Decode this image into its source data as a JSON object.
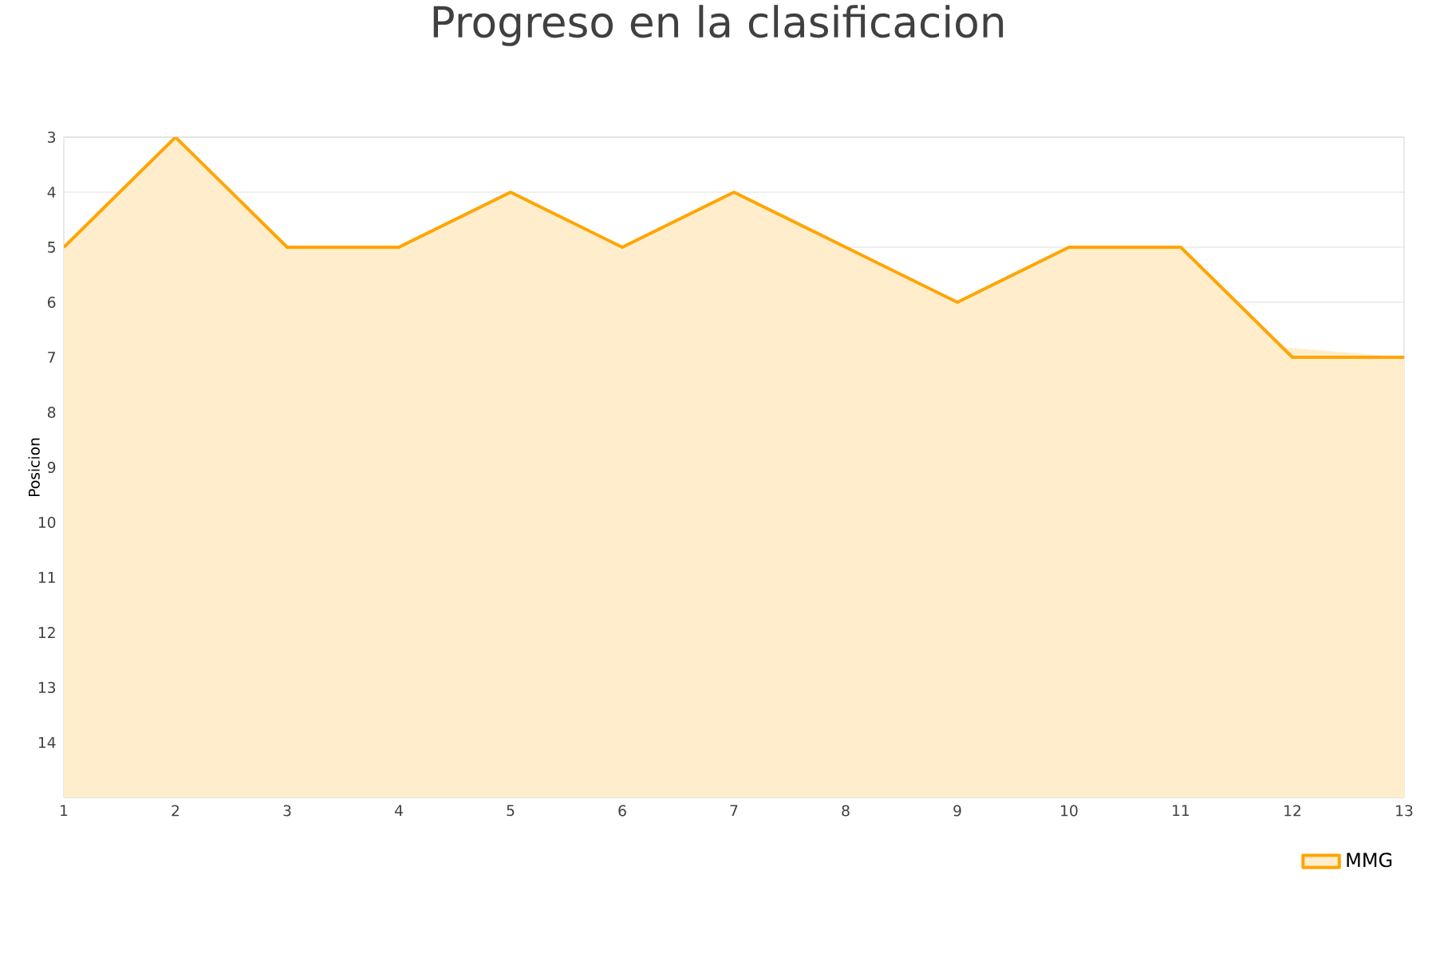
{
  "chart_data": {
    "type": "area",
    "title": "Progreso en la clasificacion",
    "ylabel": "Posicion",
    "x": [
      1,
      2,
      3,
      4,
      5,
      6,
      7,
      8,
      9,
      10,
      11,
      12,
      13
    ],
    "series": [
      {
        "name": "MMG",
        "color": "#ffa500",
        "values": [
          5,
          3,
          5,
          5,
          4,
          5,
          4,
          5,
          6,
          5,
          5,
          7,
          7
        ]
      }
    ],
    "xlim": [
      1,
      13
    ],
    "xticks": [
      1,
      2,
      3,
      4,
      5,
      6,
      7,
      8,
      9,
      10,
      11,
      12,
      13
    ],
    "ylim": [
      15,
      3
    ],
    "yticks": [
      3,
      4,
      5,
      6,
      7,
      8,
      9,
      10,
      11,
      12,
      13,
      14,
      {
        "value": 15,
        "label": null
      }
    ],
    "grid": "y",
    "legend": "bottom right",
    "marker": "none",
    "line_style": "solid"
  }
}
